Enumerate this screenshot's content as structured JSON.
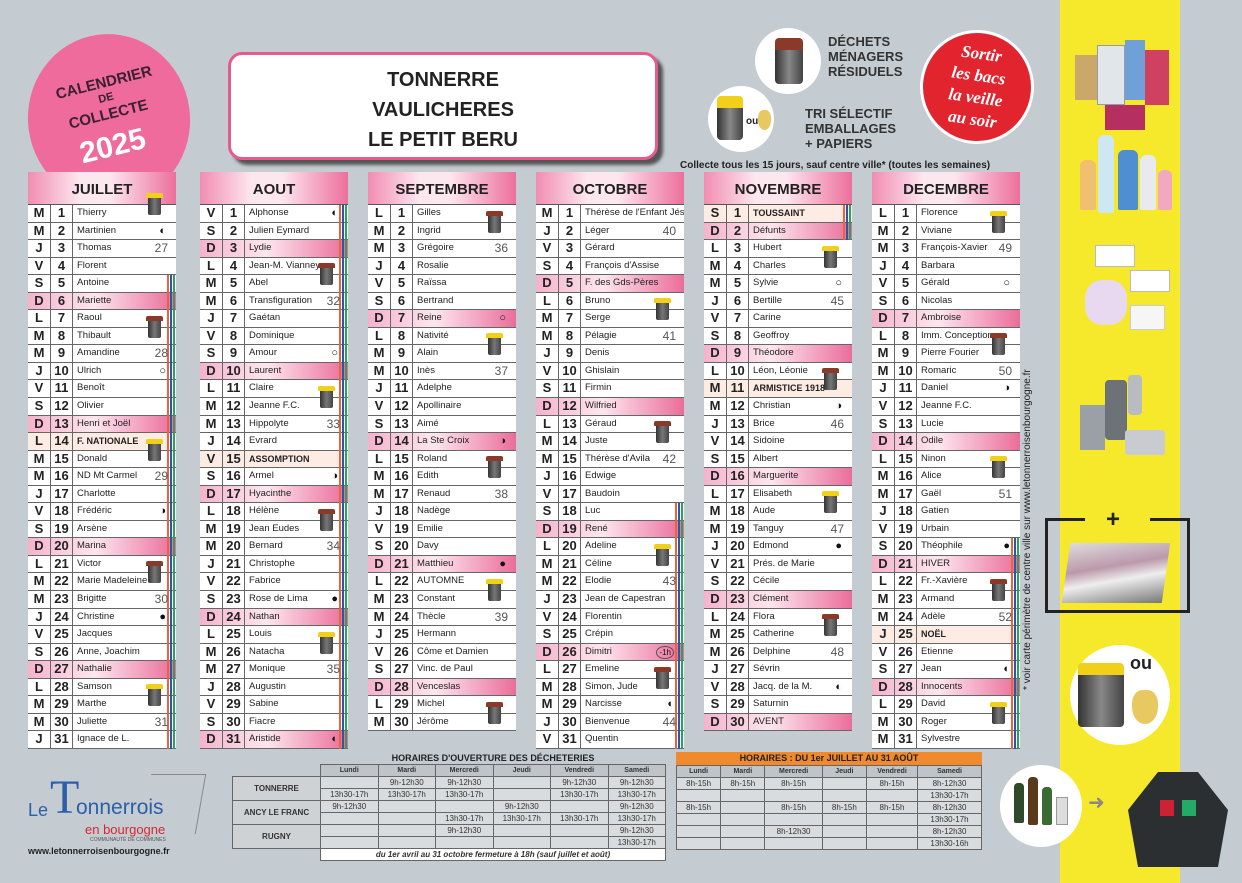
{
  "badge": {
    "line1": "CALENDRIER",
    "line2": "DE",
    "line3": "COLLECTE",
    "year": "2025"
  },
  "title": {
    "lines": [
      "TONNERRE",
      "VAULICHERES",
      "LE PETIT BERU"
    ]
  },
  "legend": {
    "residual": {
      "label": [
        "DÉCHETS",
        "MÉNAGERS",
        "RÉSIDUELS"
      ],
      "color": "#8b3a2a"
    },
    "recycling": {
      "label": [
        "TRI SÉLECTIF",
        "EMBALLAGES",
        "+ PAPIERS"
      ],
      "color": "#f0d018",
      "or": "ou"
    },
    "reminder": [
      "Sortir",
      "les bacs",
      "la veille",
      "au soir"
    ],
    "note": "Collecte tous les 15 jours, sauf centre ville* (toutes les semaines)"
  },
  "colors": {
    "accent": "#ec6f9c",
    "yellow_bin": "#f0d018",
    "brown_bin": "#8b3a2a",
    "strip": "#f6e92b",
    "reminder": "#e2242e"
  },
  "moon_glyphs": {
    "new": "●",
    "full": "○",
    "first": "◐",
    "last": "◑"
  },
  "months": [
    {
      "name": "JUILLET",
      "school_holidays": [
        5,
        31
      ],
      "days": [
        [
          "M",
          "1",
          "Thierry"
        ],
        [
          "M",
          "2",
          "Martinien"
        ],
        [
          "J",
          "3",
          "Thomas"
        ],
        [
          "V",
          "4",
          "Florent"
        ],
        [
          "S",
          "5",
          "Antoine"
        ],
        [
          "D",
          "6",
          "Mariette"
        ],
        [
          "L",
          "7",
          "Raoul"
        ],
        [
          "M",
          "8",
          "Thibault"
        ],
        [
          "M",
          "9",
          "Amandine"
        ],
        [
          "J",
          "10",
          "Ulrich"
        ],
        [
          "V",
          "11",
          "Benoît"
        ],
        [
          "S",
          "12",
          "Olivier"
        ],
        [
          "D",
          "13",
          "Henri et Joël"
        ],
        [
          "L",
          "14",
          "F. NATIONALE"
        ],
        [
          "M",
          "15",
          "Donald"
        ],
        [
          "M",
          "16",
          "ND Mt Carmel"
        ],
        [
          "J",
          "17",
          "Charlotte"
        ],
        [
          "V",
          "18",
          "Frédéric"
        ],
        [
          "S",
          "19",
          "Arsène"
        ],
        [
          "D",
          "20",
          "Marina"
        ],
        [
          "L",
          "21",
          "Victor"
        ],
        [
          "M",
          "22",
          "Marie Madeleine"
        ],
        [
          "M",
          "23",
          "Brigitte"
        ],
        [
          "J",
          "24",
          "Christine"
        ],
        [
          "V",
          "25",
          "Jacques"
        ],
        [
          "S",
          "26",
          "Anne, Joachim"
        ],
        [
          "D",
          "27",
          "Nathalie"
        ],
        [
          "L",
          "28",
          "Samson"
        ],
        [
          "M",
          "29",
          "Marthe"
        ],
        [
          "M",
          "30",
          "Juliette"
        ],
        [
          "J",
          "31",
          "Ignace de L."
        ]
      ],
      "holidays": [
        14
      ],
      "weeks": {
        "3": "27",
        "9": "28",
        "16": "29",
        "23": "30",
        "30": "31"
      },
      "moons": {
        "2": "first",
        "10": "full",
        "18": "last",
        "24": "new"
      },
      "bins": {
        "1": "yellow",
        "8": "brown",
        "15": "yellow",
        "22": "brown",
        "29": "yellow"
      }
    },
    {
      "name": "AOUT",
      "school_holidays": [
        1,
        31
      ],
      "days": [
        [
          "V",
          "1",
          "Alphonse"
        ],
        [
          "S",
          "2",
          "Julien Eymard"
        ],
        [
          "D",
          "3",
          "Lydie"
        ],
        [
          "L",
          "4",
          "Jean-M. Vianney"
        ],
        [
          "M",
          "5",
          "Abel"
        ],
        [
          "M",
          "6",
          "Transfiguration"
        ],
        [
          "J",
          "7",
          "Gaétan"
        ],
        [
          "V",
          "8",
          "Dominique"
        ],
        [
          "S",
          "9",
          "Amour"
        ],
        [
          "D",
          "10",
          "Laurent"
        ],
        [
          "L",
          "11",
          "Claire"
        ],
        [
          "M",
          "12",
          "Jeanne F.C."
        ],
        [
          "M",
          "13",
          "Hippolyte"
        ],
        [
          "J",
          "14",
          "Evrard"
        ],
        [
          "V",
          "15",
          "ASSOMPTION"
        ],
        [
          "S",
          "16",
          "Armel"
        ],
        [
          "D",
          "17",
          "Hyacinthe"
        ],
        [
          "L",
          "18",
          "Hélène"
        ],
        [
          "M",
          "19",
          "Jean Eudes"
        ],
        [
          "M",
          "20",
          "Bernard"
        ],
        [
          "J",
          "21",
          "Christophe"
        ],
        [
          "V",
          "22",
          "Fabrice"
        ],
        [
          "S",
          "23",
          "Rose de Lima"
        ],
        [
          "D",
          "24",
          "Nathan"
        ],
        [
          "L",
          "25",
          "Louis"
        ],
        [
          "M",
          "26",
          "Natacha"
        ],
        [
          "M",
          "27",
          "Monique"
        ],
        [
          "J",
          "28",
          "Augustin"
        ],
        [
          "V",
          "29",
          "Sabine"
        ],
        [
          "S",
          "30",
          "Fiacre"
        ],
        [
          "D",
          "31",
          "Aristide"
        ]
      ],
      "holidays": [
        15
      ],
      "weeks": {
        "6": "32",
        "13": "33",
        "20": "34",
        "27": "35"
      },
      "moons": {
        "1": "first",
        "9": "full",
        "16": "last",
        "23": "new",
        "31": "first"
      },
      "bins": {
        "5": "brown",
        "12": "yellow",
        "19": "brown",
        "26": "yellow"
      }
    },
    {
      "name": "SEPTEMBRE",
      "school_holidays": null,
      "days": [
        [
          "L",
          "1",
          "Gilles"
        ],
        [
          "M",
          "2",
          "Ingrid"
        ],
        [
          "M",
          "3",
          "Grégoire"
        ],
        [
          "J",
          "4",
          "Rosalie"
        ],
        [
          "V",
          "5",
          "Raïssa"
        ],
        [
          "S",
          "6",
          "Bertrand"
        ],
        [
          "D",
          "7",
          "Reine"
        ],
        [
          "L",
          "8",
          "Nativité"
        ],
        [
          "M",
          "9",
          "Alain"
        ],
        [
          "M",
          "10",
          "Inès"
        ],
        [
          "J",
          "11",
          "Adelphe"
        ],
        [
          "V",
          "12",
          "Apollinaire"
        ],
        [
          "S",
          "13",
          "Aimé"
        ],
        [
          "D",
          "14",
          "La Ste Croix"
        ],
        [
          "L",
          "15",
          "Roland"
        ],
        [
          "M",
          "16",
          "Edith"
        ],
        [
          "M",
          "17",
          "Renaud"
        ],
        [
          "J",
          "18",
          "Nadège"
        ],
        [
          "V",
          "19",
          "Emilie"
        ],
        [
          "S",
          "20",
          "Davy"
        ],
        [
          "D",
          "21",
          "Matthieu"
        ],
        [
          "L",
          "22",
          "AUTOMNE"
        ],
        [
          "M",
          "23",
          "Constant"
        ],
        [
          "M",
          "24",
          "Thècle"
        ],
        [
          "J",
          "25",
          "Hermann"
        ],
        [
          "V",
          "26",
          "Côme et Damien"
        ],
        [
          "S",
          "27",
          "Vinc. de Paul"
        ],
        [
          "D",
          "28",
          "Venceslas"
        ],
        [
          "L",
          "29",
          "Michel"
        ],
        [
          "M",
          "30",
          "Jérôme"
        ]
      ],
      "holidays": [],
      "weeks": {
        "3": "36",
        "10": "37",
        "17": "38",
        "24": "39"
      },
      "moons": {
        "7": "full",
        "14": "last",
        "21": "new"
      },
      "bins": {
        "2": "brown",
        "9": "yellow",
        "16": "brown",
        "23": "yellow",
        "30": "brown"
      }
    },
    {
      "name": "OCTOBRE",
      "school_holidays": [
        18,
        31
      ],
      "days": [
        [
          "M",
          "1",
          "Thérèse de l'Enfant Jésus"
        ],
        [
          "J",
          "2",
          "Léger"
        ],
        [
          "V",
          "3",
          "Gérard"
        ],
        [
          "S",
          "4",
          "François d'Assise"
        ],
        [
          "D",
          "5",
          "F. des Gds-Pères"
        ],
        [
          "L",
          "6",
          "Bruno"
        ],
        [
          "M",
          "7",
          "Serge"
        ],
        [
          "M",
          "8",
          "Pélagie"
        ],
        [
          "J",
          "9",
          "Denis"
        ],
        [
          "V",
          "10",
          "Ghislain"
        ],
        [
          "S",
          "11",
          "Firmin"
        ],
        [
          "D",
          "12",
          "Wilfried"
        ],
        [
          "L",
          "13",
          "Géraud"
        ],
        [
          "M",
          "14",
          "Juste"
        ],
        [
          "M",
          "15",
          "Thérèse d'Avila"
        ],
        [
          "J",
          "16",
          "Edwige"
        ],
        [
          "V",
          "17",
          "Baudoin"
        ],
        [
          "S",
          "18",
          "Luc"
        ],
        [
          "D",
          "19",
          "René"
        ],
        [
          "L",
          "20",
          "Adeline"
        ],
        [
          "M",
          "21",
          "Céline"
        ],
        [
          "M",
          "22",
          "Elodie"
        ],
        [
          "J",
          "23",
          "Jean de Capestran"
        ],
        [
          "V",
          "24",
          "Florentin"
        ],
        [
          "S",
          "25",
          "Crépin"
        ],
        [
          "D",
          "26",
          "Dimitri"
        ],
        [
          "L",
          "27",
          "Emeline"
        ],
        [
          "M",
          "28",
          "Simon, Jude"
        ],
        [
          "M",
          "29",
          "Narcisse"
        ],
        [
          "J",
          "30",
          "Bienvenue"
        ],
        [
          "V",
          "31",
          "Quentin"
        ]
      ],
      "holidays": [],
      "weeks": {
        "2": "40",
        "8": "41",
        "15": "42",
        "22": "43",
        "30": "44"
      },
      "moons": {
        "29": "first"
      },
      "marks": {
        "26": "-1h"
      },
      "bins": {
        "7": "yellow",
        "14": "brown",
        "21": "yellow",
        "28": "brown"
      }
    },
    {
      "name": "NOVEMBRE",
      "school_holidays": [
        1,
        2
      ],
      "days": [
        [
          "S",
          "1",
          "TOUSSAINT"
        ],
        [
          "D",
          "2",
          "Défunts"
        ],
        [
          "L",
          "3",
          "Hubert"
        ],
        [
          "M",
          "4",
          "Charles"
        ],
        [
          "M",
          "5",
          "Sylvie"
        ],
        [
          "J",
          "6",
          "Bertille"
        ],
        [
          "V",
          "7",
          "Carine"
        ],
        [
          "S",
          "8",
          "Geoffroy"
        ],
        [
          "D",
          "9",
          "Théodore"
        ],
        [
          "L",
          "10",
          "Léon, Léonie"
        ],
        [
          "M",
          "11",
          "ARMISTICE 1918"
        ],
        [
          "M",
          "12",
          "Christian"
        ],
        [
          "J",
          "13",
          "Brice"
        ],
        [
          "V",
          "14",
          "Sidoine"
        ],
        [
          "S",
          "15",
          "Albert"
        ],
        [
          "D",
          "16",
          "Marguerite"
        ],
        [
          "L",
          "17",
          "Elisabeth"
        ],
        [
          "M",
          "18",
          "Aude"
        ],
        [
          "M",
          "19",
          "Tanguy"
        ],
        [
          "J",
          "20",
          "Edmond"
        ],
        [
          "V",
          "21",
          "Prés. de Marie"
        ],
        [
          "S",
          "22",
          "Cécile"
        ],
        [
          "D",
          "23",
          "Clément"
        ],
        [
          "L",
          "24",
          "Flora"
        ],
        [
          "M",
          "25",
          "Catherine"
        ],
        [
          "M",
          "26",
          "Delphine"
        ],
        [
          "J",
          "27",
          "Sévrin"
        ],
        [
          "V",
          "28",
          "Jacq. de la M."
        ],
        [
          "S",
          "29",
          "Saturnin"
        ],
        [
          "D",
          "30",
          "AVENT"
        ]
      ],
      "holidays": [
        1,
        11
      ],
      "weeks": {
        "6": "45",
        "13": "46",
        "19": "47",
        "26": "48"
      },
      "moons": {
        "5": "full",
        "12": "last",
        "20": "new",
        "28": "first"
      },
      "bins": {
        "4": "yellow",
        "11": "brown",
        "18": "yellow",
        "25": "brown"
      }
    },
    {
      "name": "DECEMBRE",
      "school_holidays": [
        20,
        31
      ],
      "days": [
        [
          "L",
          "1",
          "Florence"
        ],
        [
          "M",
          "2",
          "Viviane"
        ],
        [
          "M",
          "3",
          "François-Xavier"
        ],
        [
          "J",
          "4",
          "Barbara"
        ],
        [
          "V",
          "5",
          "Gérald"
        ],
        [
          "S",
          "6",
          "Nicolas"
        ],
        [
          "D",
          "7",
          "Ambroise"
        ],
        [
          "L",
          "8",
          "Imm. Conception"
        ],
        [
          "M",
          "9",
          "Pierre Fourier"
        ],
        [
          "M",
          "10",
          "Romaric"
        ],
        [
          "J",
          "11",
          "Daniel"
        ],
        [
          "V",
          "12",
          "Jeanne F.C."
        ],
        [
          "S",
          "13",
          "Lucie"
        ],
        [
          "D",
          "14",
          "Odile"
        ],
        [
          "L",
          "15",
          "Ninon"
        ],
        [
          "M",
          "16",
          "Alice"
        ],
        [
          "M",
          "17",
          "Gaël"
        ],
        [
          "J",
          "18",
          "Gatien"
        ],
        [
          "V",
          "19",
          "Urbain"
        ],
        [
          "S",
          "20",
          "Théophile"
        ],
        [
          "D",
          "21",
          "HIVER"
        ],
        [
          "L",
          "22",
          "Fr.-Xavière"
        ],
        [
          "M",
          "23",
          "Armand"
        ],
        [
          "M",
          "24",
          "Adèle"
        ],
        [
          "J",
          "25",
          "NOËL"
        ],
        [
          "V",
          "26",
          "Etienne"
        ],
        [
          "S",
          "27",
          "Jean"
        ],
        [
          "D",
          "28",
          "Innocents"
        ],
        [
          "L",
          "29",
          "David"
        ],
        [
          "M",
          "30",
          "Roger"
        ],
        [
          "M",
          "31",
          "Sylvestre"
        ]
      ],
      "holidays": [
        25
      ],
      "weeks": {
        "3": "49",
        "10": "50",
        "17": "51",
        "24": "52"
      },
      "moons": {
        "5": "full",
        "11": "last",
        "20": "new",
        "27": "first"
      },
      "bins": {
        "2": "yellow",
        "9": "brown",
        "16": "yellow",
        "23": "brown",
        "30": "yellow"
      }
    }
  ],
  "footnote": "* voir carte périmètre de centre ville sur www.letonnerroisenbourgogne.fr",
  "side": {
    "plus": "+",
    "or": "ou"
  },
  "dechet": {
    "title": "HORAIRES D'OUVERTURE DES DÉCHETERIES",
    "days": [
      "Lundi",
      "Mardi",
      "Mercredi",
      "Jeudi",
      "Vendredi",
      "Samedi"
    ],
    "sites": [
      {
        "name": "TONNERRE",
        "rows": [
          [
            "",
            "9h-12h30",
            "9h-12h30",
            "",
            "9h-12h30",
            "9h-12h30"
          ],
          [
            "13h30-17h",
            "13h30-17h",
            "13h30-17h",
            "",
            "13h30-17h",
            "13h30-17h"
          ]
        ]
      },
      {
        "name": "ANCY LE FRANC",
        "rows": [
          [
            "9h-12h30",
            "",
            "",
            "9h-12h30",
            "",
            "9h-12h30"
          ],
          [
            "",
            "",
            "13h30-17h",
            "13h30-17h",
            "13h30-17h",
            "13h30-17h"
          ]
        ]
      },
      {
        "name": "RUGNY",
        "rows": [
          [
            "",
            "",
            "9h-12h30",
            "",
            "",
            "9h-12h30"
          ],
          [
            "",
            "",
            "",
            "",
            "",
            "13h30-17h"
          ]
        ]
      }
    ],
    "footer": "du 1er avril au 31 octobre fermeture à 18h (sauf juillet et août)"
  },
  "summer": {
    "title": "HORAIRES : DU 1er JUILLET AU 31 AOÛT",
    "days": [
      "Lundi",
      "Mardi",
      "Mercredi",
      "Jeudi",
      "Vendredi",
      "Samedi"
    ],
    "rows": [
      [
        "8h-15h",
        "8h-15h",
        "8h-15h",
        "",
        "8h-15h",
        "8h-12h30"
      ],
      [
        "",
        "",
        "",
        "",
        "",
        "13h30-17h"
      ],
      [
        "8h-15h",
        "",
        "8h-15h",
        "8h-15h",
        "8h-15h",
        "8h-12h30"
      ],
      [
        "",
        "",
        "",
        "",
        "",
        "13h30-17h"
      ],
      [
        "",
        "",
        "8h-12h30",
        "",
        "",
        "8h-12h30"
      ],
      [
        "",
        "",
        "",
        "",
        "",
        "13h30-16h"
      ]
    ]
  },
  "logo": {
    "le": "Le",
    "name": "onnerrois",
    "sub": "en bourgogne",
    "tag": "COMMUNAUTÉ DE COMMUNES",
    "url": "www.letonnerroisenbourgogne.fr"
  }
}
